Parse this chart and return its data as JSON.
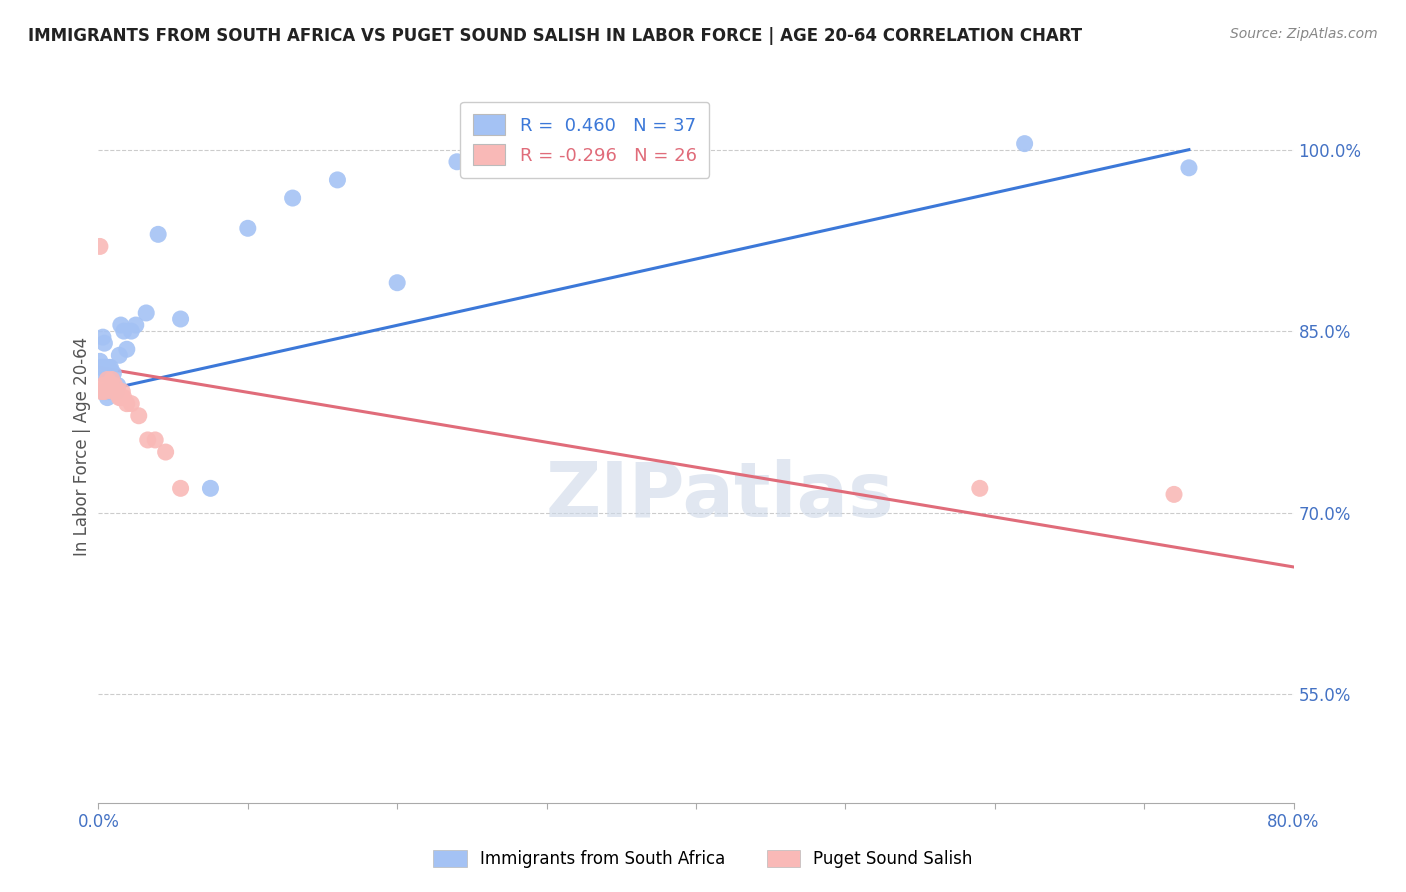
{
  "title": "IMMIGRANTS FROM SOUTH AFRICA VS PUGET SOUND SALISH IN LABOR FORCE | AGE 20-64 CORRELATION CHART",
  "source": "Source: ZipAtlas.com",
  "ylabel": "In Labor Force | Age 20-64",
  "ylabel_ticks": [
    "55.0%",
    "70.0%",
    "85.0%",
    "100.0%"
  ],
  "ylabel_tick_vals": [
    0.55,
    0.7,
    0.85,
    1.0
  ],
  "xlim": [
    0.0,
    0.8
  ],
  "ylim": [
    0.46,
    1.05
  ],
  "legend1_label": "R =  0.460   N = 37",
  "legend2_label": "R = -0.296   N = 26",
  "legend1_color": "#a4c2f4",
  "legend2_color": "#f9b9b7",
  "scatter_blue_color": "#a4c2f4",
  "scatter_pink_color": "#f9b9b7",
  "line_blue_color": "#3c78d8",
  "line_pink_color": "#e06c7a",
  "watermark_color": "#cdd8e8",
  "bottom_legend_label1": "Immigrants from South Africa",
  "bottom_legend_label2": "Puget Sound Salish",
  "blue_scatter_x": [
    0.001,
    0.002,
    0.003,
    0.003,
    0.004,
    0.004,
    0.005,
    0.005,
    0.006,
    0.006,
    0.007,
    0.007,
    0.008,
    0.009,
    0.01,
    0.01,
    0.011,
    0.012,
    0.013,
    0.014,
    0.015,
    0.017,
    0.019,
    0.022,
    0.025,
    0.032,
    0.04,
    0.055,
    0.075,
    0.1,
    0.13,
    0.16,
    0.2,
    0.24,
    0.28,
    0.62,
    0.73
  ],
  "blue_scatter_y": [
    0.825,
    0.82,
    0.845,
    0.815,
    0.84,
    0.82,
    0.82,
    0.8,
    0.815,
    0.795,
    0.82,
    0.8,
    0.82,
    0.81,
    0.815,
    0.8,
    0.8,
    0.8,
    0.805,
    0.83,
    0.855,
    0.85,
    0.835,
    0.85,
    0.855,
    0.865,
    0.93,
    0.86,
    0.72,
    0.935,
    0.96,
    0.975,
    0.89,
    0.99,
    0.985,
    1.005,
    0.985
  ],
  "pink_scatter_x": [
    0.001,
    0.002,
    0.003,
    0.004,
    0.005,
    0.006,
    0.007,
    0.008,
    0.009,
    0.01,
    0.011,
    0.012,
    0.013,
    0.014,
    0.015,
    0.016,
    0.017,
    0.019,
    0.022,
    0.027,
    0.033,
    0.038,
    0.045,
    0.055,
    0.59,
    0.72
  ],
  "pink_scatter_y": [
    0.92,
    0.8,
    0.805,
    0.8,
    0.805,
    0.81,
    0.805,
    0.805,
    0.81,
    0.8,
    0.805,
    0.8,
    0.8,
    0.795,
    0.795,
    0.8,
    0.795,
    0.79,
    0.79,
    0.78,
    0.76,
    0.76,
    0.75,
    0.72,
    0.72,
    0.715
  ],
  "blue_line_x": [
    0.0,
    0.73
  ],
  "blue_line_y": [
    0.8,
    1.0
  ],
  "pink_line_x": [
    0.0,
    0.8
  ],
  "pink_line_y": [
    0.82,
    0.655
  ],
  "xtick_positions": [
    0.0,
    0.1,
    0.2,
    0.3,
    0.4,
    0.5,
    0.6,
    0.7,
    0.8
  ],
  "grid_color": "#cccccc",
  "background_color": "#ffffff"
}
